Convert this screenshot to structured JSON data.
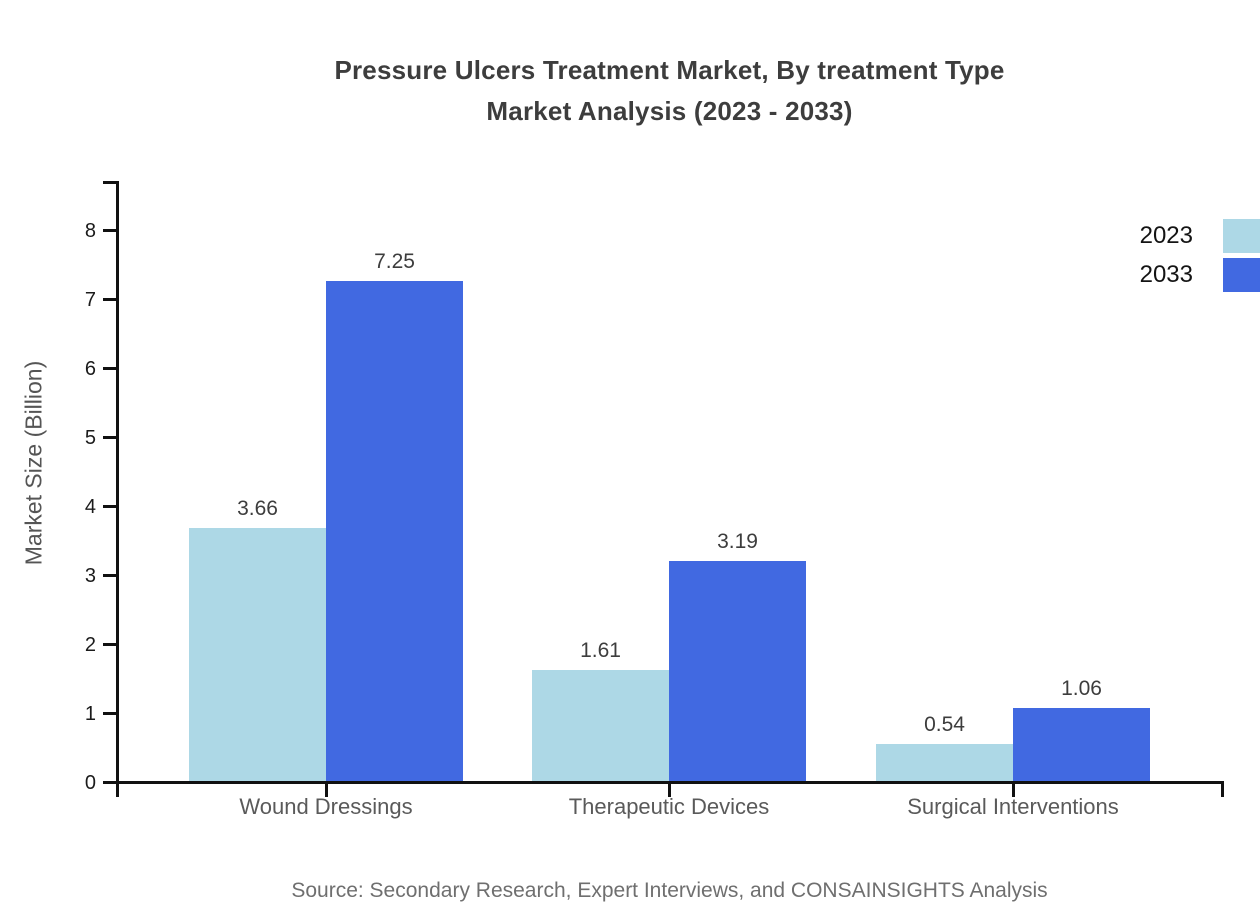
{
  "page": {
    "title_line1": "Pressure Ulcers Treatment Market, By treatment Type",
    "title_line2": "Market Analysis (2023 - 2033)",
    "source": "Source: Secondary Research, Expert Interviews, and CONSAINSIGHTS Analysis"
  },
  "chart_data": {
    "type": "bar",
    "title": "Pressure Ulcers Treatment Market, By treatment Type Market Analysis (2023 - 2033)",
    "categories": [
      "Wound Dressings",
      "Therapeutic Devices",
      "Surgical Interventions"
    ],
    "series": [
      {
        "name": "2023",
        "color": "#ADD8E6",
        "values": [
          3.66,
          1.61,
          0.54
        ]
      },
      {
        "name": "2033",
        "color": "#4169E1",
        "values": [
          7.25,
          3.19,
          1.06
        ]
      }
    ],
    "value_labels": [
      "3.66",
      "7.25",
      "1.61",
      "3.19",
      "0.54",
      "1.06"
    ],
    "xlabel": "",
    "ylabel": "Market Size (Billion)",
    "ylim": [
      0,
      8
    ],
    "ytick_step": 1,
    "yticks": [
      "0",
      "1",
      "2",
      "3",
      "4",
      "5",
      "6",
      "7",
      "8"
    ],
    "grid": false,
    "legend_position": "top-right",
    "axis_color": "#111111"
  }
}
